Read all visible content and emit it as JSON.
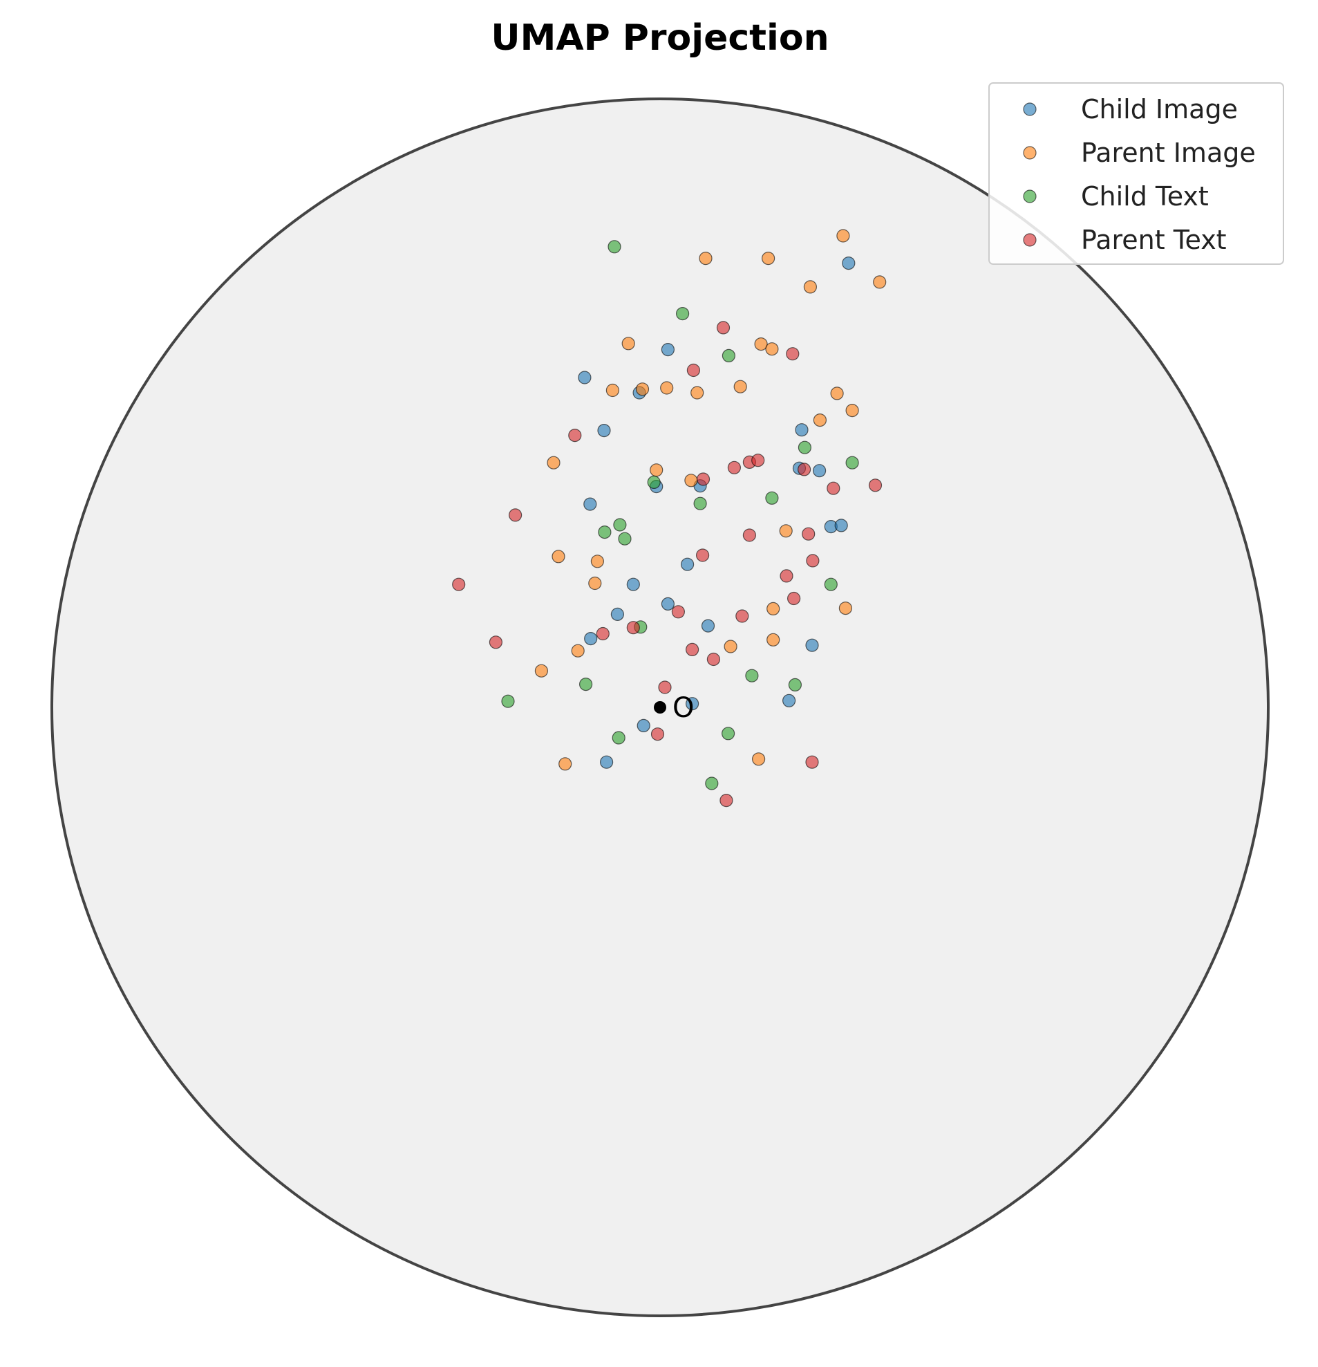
{
  "chart_data": {
    "type": "scatter",
    "title": "UMAP Projection",
    "xlabel": "",
    "ylabel": "",
    "xlim": [
      -1,
      1
    ],
    "ylim": [
      -1,
      1
    ],
    "grid": false,
    "boundary": "unit-circle",
    "legend_position": "top-right",
    "origin_label": "O",
    "series": [
      {
        "name": "Child Image",
        "color": "#1f77b4",
        "points": [
          [
            0.31,
            0.73
          ],
          [
            0.013,
            0.588
          ],
          [
            -0.124,
            0.542
          ],
          [
            -0.034,
            0.517
          ],
          [
            -0.092,
            0.455
          ],
          [
            0.233,
            0.456
          ],
          [
            0.229,
            0.393
          ],
          [
            0.262,
            0.389
          ],
          [
            -0.006,
            0.363
          ],
          [
            0.066,
            0.364
          ],
          [
            -0.115,
            0.334
          ],
          [
            0.281,
            0.297
          ],
          [
            0.298,
            0.299
          ],
          [
            0.045,
            0.235
          ],
          [
            -0.044,
            0.202
          ],
          [
            0.013,
            0.17
          ],
          [
            -0.07,
            0.153
          ],
          [
            0.079,
            0.134
          ],
          [
            -0.114,
            0.113
          ],
          [
            0.25,
            0.102
          ],
          [
            0.053,
            0.006
          ],
          [
            0.212,
            0.011
          ],
          [
            -0.027,
            -0.03
          ],
          [
            -0.088,
            -0.09
          ]
        ]
      },
      {
        "name": "Parent Image",
        "color": "#ff7f0e",
        "points": [
          [
            0.301,
            0.775
          ],
          [
            0.075,
            0.738
          ],
          [
            0.178,
            0.738
          ],
          [
            0.247,
            0.691
          ],
          [
            0.361,
            0.699
          ],
          [
            -0.052,
            0.598
          ],
          [
            0.166,
            0.597
          ],
          [
            0.184,
            0.589
          ],
          [
            -0.078,
            0.521
          ],
          [
            -0.029,
            0.523
          ],
          [
            0.011,
            0.525
          ],
          [
            0.061,
            0.517
          ],
          [
            0.132,
            0.527
          ],
          [
            0.291,
            0.516
          ],
          [
            0.316,
            0.488
          ],
          [
            0.263,
            0.472
          ],
          [
            -0.175,
            0.402
          ],
          [
            -0.006,
            0.39
          ],
          [
            0.051,
            0.373
          ],
          [
            0.207,
            0.29
          ],
          [
            -0.167,
            0.248
          ],
          [
            -0.103,
            0.24
          ],
          [
            -0.107,
            0.204
          ],
          [
            0.186,
            0.162
          ],
          [
            0.305,
            0.163
          ],
          [
            0.186,
            0.111
          ],
          [
            -0.135,
            0.093
          ],
          [
            0.116,
            0.1
          ],
          [
            -0.195,
            0.06
          ],
          [
            -0.156,
            -0.093
          ],
          [
            0.162,
            -0.085
          ]
        ]
      },
      {
        "name": "Child Text",
        "color": "#2ca02c",
        "points": [
          [
            -0.075,
            0.757
          ],
          [
            0.037,
            0.647
          ],
          [
            0.113,
            0.578
          ],
          [
            0.238,
            0.427
          ],
          [
            -0.01,
            0.37
          ],
          [
            0.316,
            0.402
          ],
          [
            0.184,
            0.344
          ],
          [
            0.066,
            0.335
          ],
          [
            -0.066,
            0.3
          ],
          [
            -0.091,
            0.288
          ],
          [
            -0.058,
            0.277
          ],
          [
            0.281,
            0.202
          ],
          [
            -0.032,
            0.132
          ],
          [
            0.151,
            0.052
          ],
          [
            0.222,
            0.037
          ],
          [
            -0.122,
            0.038
          ],
          [
            -0.25,
            0.01
          ],
          [
            -0.068,
            -0.05
          ],
          [
            0.112,
            -0.043
          ],
          [
            0.085,
            -0.125
          ]
        ]
      },
      {
        "name": "Parent Text",
        "color": "#d62728",
        "points": [
          [
            0.104,
            0.624
          ],
          [
            0.218,
            0.581
          ],
          [
            0.055,
            0.554
          ],
          [
            -0.14,
            0.447
          ],
          [
            0.122,
            0.394
          ],
          [
            0.147,
            0.403
          ],
          [
            0.161,
            0.406
          ],
          [
            0.237,
            0.391
          ],
          [
            0.285,
            0.36
          ],
          [
            0.354,
            0.365
          ],
          [
            0.071,
            0.375
          ],
          [
            -0.238,
            0.316
          ],
          [
            0.147,
            0.283
          ],
          [
            0.244,
            0.285
          ],
          [
            0.07,
            0.25
          ],
          [
            0.251,
            0.241
          ],
          [
            0.208,
            0.216
          ],
          [
            -0.331,
            0.202
          ],
          [
            0.22,
            0.179
          ],
          [
            0.03,
            0.157
          ],
          [
            0.135,
            0.15
          ],
          [
            -0.044,
            0.131
          ],
          [
            -0.094,
            0.121
          ],
          [
            -0.27,
            0.107
          ],
          [
            0.053,
            0.095
          ],
          [
            0.088,
            0.079
          ],
          [
            0.008,
            0.033
          ],
          [
            -0.004,
            -0.044
          ],
          [
            0.25,
            -0.09
          ],
          [
            0.109,
            -0.153
          ]
        ]
      }
    ]
  }
}
